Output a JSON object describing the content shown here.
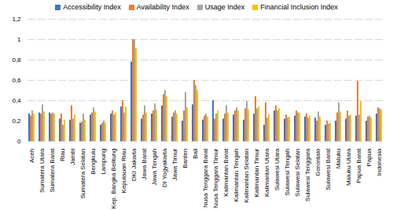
{
  "chart_data": {
    "type": "bar",
    "categories": [
      "Aceh",
      "Sumatera Utara",
      "Sumatera Barat",
      "Riau",
      "Jambi",
      "Sumatera Selatan",
      "Bengkulu",
      "Lampung",
      "Kep. Bangka Belitung",
      "Kepulauan Riau",
      "DKI Jakarta",
      "Jawa Barat",
      "Jawa Tengah",
      "DI Yogyakarta",
      "Jawa Timur",
      "Banten",
      "Bali",
      "Nusa Tenggara Barat",
      "Nusa Tenggara Timur",
      "Kalimantan Barat",
      "Kalimantan Tengah",
      "Kalimantan Selatan",
      "Kalimantan Timur",
      "Kalimantan Utara",
      "Sulawesi Utara",
      "Sulawesi Tengah",
      "Sulawesi Selatan",
      "Sulawesi Tenggara",
      "Gorontalo",
      "Sulawesi Barat",
      "Maluku",
      "Maluku Utara",
      "Papua Barat",
      "Papua",
      "Indonesia"
    ],
    "series": [
      {
        "name": "Accessibility Index",
        "color": "#4472c4",
        "values": [
          0.27,
          0.28,
          0.28,
          0.22,
          0.21,
          0.18,
          0.26,
          0.16,
          0.27,
          0.34,
          0.78,
          0.22,
          0.27,
          0.35,
          0.24,
          0.2,
          0.36,
          0.21,
          0.4,
          0.22,
          0.26,
          0.21,
          0.27,
          0.16,
          0.3,
          0.22,
          0.25,
          0.24,
          0.23,
          0.16,
          0.2,
          0.22,
          0.25,
          0.2,
          0.27
        ]
      },
      {
        "name": "Availability Index",
        "color": "#ed7d31",
        "values": [
          0.25,
          0.27,
          0.27,
          0.27,
          0.35,
          0.19,
          0.28,
          0.18,
          0.3,
          0.4,
          1.0,
          0.26,
          0.3,
          0.46,
          0.28,
          0.3,
          0.6,
          0.25,
          0.22,
          0.27,
          0.3,
          0.32,
          0.44,
          0.38,
          0.35,
          0.26,
          0.3,
          0.27,
          0.2,
          0.2,
          0.28,
          0.3,
          0.59,
          0.24,
          0.33
        ]
      },
      {
        "name": "Usage Index",
        "color": "#a5a5a5",
        "values": [
          0.3,
          0.36,
          0.28,
          0.16,
          0.22,
          0.27,
          0.33,
          0.2,
          0.26,
          0.28,
          1.0,
          0.35,
          0.37,
          0.5,
          0.3,
          0.48,
          0.55,
          0.27,
          0.27,
          0.35,
          0.33,
          0.39,
          0.32,
          0.23,
          0.3,
          0.23,
          0.28,
          0.23,
          0.29,
          0.17,
          0.38,
          0.25,
          0.26,
          0.25,
          0.32
        ]
      },
      {
        "name": "Financial Inclusion Index",
        "color": "#ffc000",
        "values": [
          0.27,
          0.29,
          0.27,
          0.21,
          0.26,
          0.21,
          0.29,
          0.18,
          0.28,
          0.34,
          0.91,
          0.28,
          0.31,
          0.44,
          0.27,
          0.33,
          0.5,
          0.24,
          0.3,
          0.28,
          0.3,
          0.31,
          0.34,
          0.26,
          0.32,
          0.24,
          0.28,
          0.25,
          0.24,
          0.18,
          0.29,
          0.26,
          0.39,
          0.23,
          0.31
        ]
      }
    ],
    "ylim": [
      0,
      1.2
    ],
    "yticks": [
      0,
      {
        "value": 0.2,
        "label": "0,2"
      },
      {
        "value": 0.4,
        "label": "0,4"
      },
      {
        "value": 0.6,
        "label": "0,6"
      },
      {
        "value": 0.8,
        "label": "0,8"
      },
      1,
      {
        "value": 1.2,
        "label": "1,2"
      }
    ],
    "grid": true,
    "legend": "top"
  }
}
